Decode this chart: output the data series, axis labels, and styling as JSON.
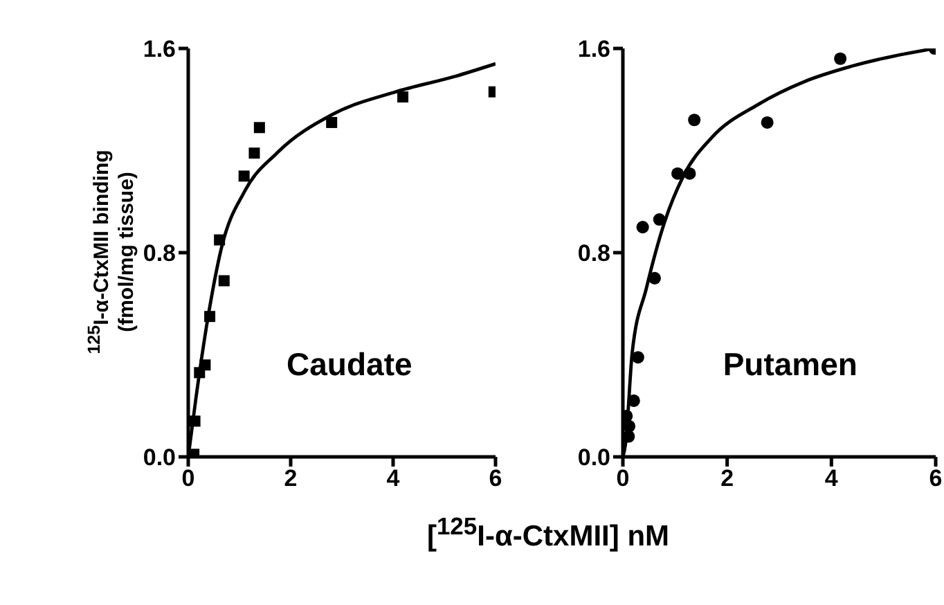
{
  "chart_data": [
    {
      "type": "scatter",
      "ylabel": "$^{125}$I-α-CtxMII binding\n(fmol/mg tissue)",
      "xlabel": "[$^{125}$I-α-CtxMII] nM",
      "annotations": [
        "Caudate"
      ],
      "xlim": [
        0,
        6
      ],
      "xticks": [
        0,
        2,
        4,
        6
      ],
      "ylim": [
        0,
        1.6
      ],
      "yticks": [
        {
          "value": 0,
          "label": "0.0"
        },
        {
          "value": 0.8,
          "label": "0.8"
        },
        {
          "value": 1.6,
          "label": "1.6"
        }
      ],
      "grid": false,
      "series": [
        {
          "type": "scatter",
          "marker": "square",
          "color": "#000000",
          "x": [
            0.11,
            0.13,
            0.22,
            0.33,
            0.42,
            0.61,
            0.7,
            1.09,
            1.29,
            1.39,
            2.8,
            4.19,
            5.97
          ],
          "values": [
            0.01,
            0.14,
            0.33,
            0.36,
            0.55,
            0.85,
            0.69,
            1.1,
            1.19,
            1.29,
            1.31,
            1.41,
            1.43
          ]
        },
        {
          "type": "line",
          "marker": "none",
          "line_style": "solid",
          "color": "#000000",
          "x": [
            0,
            0.15,
            0.38,
            0.65,
            1.1,
            1.73,
            2.8,
            4.05,
            5.2,
            6
          ],
          "values": [
            0,
            0.23,
            0.54,
            0.82,
            1.04,
            1.19,
            1.34,
            1.43,
            1.49,
            1.54
          ]
        }
      ]
    },
    {
      "type": "scatter",
      "annotations": [
        "Putamen"
      ],
      "xlim": [
        0,
        6
      ],
      "xticks": [
        0,
        2,
        4,
        6
      ],
      "ylim": [
        0,
        1.6
      ],
      "yticks": [
        {
          "value": 0,
          "label": "0.0"
        },
        {
          "value": 0.8,
          "label": "0.8"
        },
        {
          "value": 1.6,
          "label": "1.6"
        }
      ],
      "grid": false,
      "series": [
        {
          "type": "scatter",
          "marker": "circle",
          "color": "#000000",
          "x": [
            0.11,
            0.12,
            0.07,
            0.21,
            0.29,
            0.38,
            0.61,
            0.7,
            1.05,
            1.28,
            1.37,
            2.77,
            4.17,
            5.98
          ],
          "values": [
            0.08,
            0.12,
            0.16,
            0.22,
            0.39,
            0.9,
            0.7,
            0.93,
            1.11,
            1.11,
            1.32,
            1.31,
            1.56,
            1.6
          ]
        },
        {
          "type": "line",
          "marker": "none",
          "line_style": "solid",
          "color": "#000000",
          "x": [
            0,
            0.05,
            0.18,
            0.45,
            0.8,
            1.16,
            1.7,
            2.59,
            3.48,
            4.38,
            5.98
          ],
          "values": [
            0,
            0.05,
            0.41,
            0.66,
            0.92,
            1.1,
            1.25,
            1.38,
            1.47,
            1.53,
            1.6
          ]
        }
      ]
    }
  ]
}
